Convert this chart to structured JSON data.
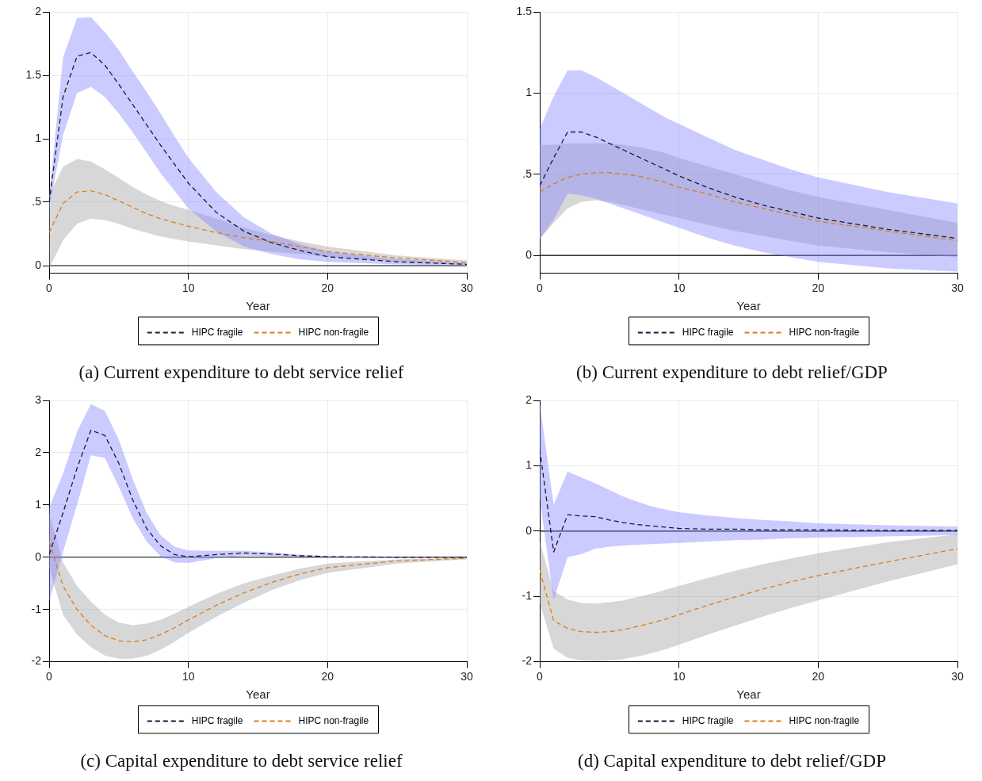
{
  "chart_data": [
    {
      "type": "line",
      "title": "(a) Current expenditure to debt service relief",
      "xlabel": "Year",
      "x": [
        0,
        1,
        2,
        3,
        4,
        5,
        6,
        7,
        8,
        9,
        10,
        12,
        14,
        16,
        18,
        20,
        25,
        30
      ],
      "xlim": [
        0,
        30
      ],
      "xticks": [
        0,
        10,
        20,
        30
      ],
      "ylim": [
        -0.06,
        2
      ],
      "yticks": [
        0,
        {
          "value": 0.5,
          "label": ".5"
        },
        1,
        1.5,
        2
      ],
      "grid": true,
      "legend": "bottom",
      "line_style": "dashed",
      "ref_lines": [
        {
          "axis": "y",
          "value": 0,
          "color": "#000000"
        }
      ],
      "series": [
        {
          "name": "HIPC fragile",
          "color": "#1a1a3a",
          "values": [
            0.5,
            1.33,
            1.65,
            1.68,
            1.58,
            1.43,
            1.27,
            1.11,
            0.95,
            0.8,
            0.65,
            0.42,
            0.27,
            0.18,
            0.12,
            0.07,
            0.03,
            0.01
          ],
          "upper": [
            0.55,
            1.64,
            1.95,
            1.96,
            1.84,
            1.7,
            1.53,
            1.37,
            1.2,
            1.02,
            0.85,
            0.58,
            0.38,
            0.25,
            0.17,
            0.11,
            0.05,
            0.02
          ],
          "lower": [
            0.45,
            1.03,
            1.36,
            1.41,
            1.33,
            1.2,
            1.05,
            0.89,
            0.73,
            0.59,
            0.45,
            0.27,
            0.15,
            0.09,
            0.05,
            0.03,
            0.01,
            0
          ]
        },
        {
          "name": "HIPC non-fragile",
          "color": "#e07b1a",
          "values": [
            0.26,
            0.49,
            0.58,
            0.59,
            0.56,
            0.51,
            0.46,
            0.41,
            0.37,
            0.34,
            0.31,
            0.26,
            0.22,
            0.19,
            0.15,
            0.11,
            0.06,
            0.025
          ],
          "upper": [
            0.55,
            0.78,
            0.84,
            0.82,
            0.76,
            0.69,
            0.62,
            0.56,
            0.51,
            0.47,
            0.44,
            0.37,
            0.3,
            0.24,
            0.19,
            0.15,
            0.08,
            0.04
          ],
          "lower": [
            -0.02,
            0.2,
            0.33,
            0.37,
            0.36,
            0.33,
            0.29,
            0.26,
            0.23,
            0.21,
            0.19,
            0.16,
            0.13,
            0.11,
            0.09,
            0.07,
            0.03,
            0.01
          ]
        }
      ]
    },
    {
      "type": "line",
      "title": "(b) Current expenditure to debt relief/GDP",
      "xlabel": "Year",
      "x": [
        0,
        1,
        2,
        3,
        4,
        5,
        6,
        7,
        8,
        9,
        10,
        12,
        14,
        16,
        18,
        20,
        25,
        30
      ],
      "xlim": [
        0,
        30
      ],
      "xticks": [
        0,
        10,
        20,
        30
      ],
      "ylim": [
        -0.11,
        1.5
      ],
      "yticks": [
        0,
        {
          "value": 0.5,
          "label": ".5"
        },
        1,
        1.5
      ],
      "grid": true,
      "legend": "bottom",
      "line_style": "dashed",
      "ref_lines": [
        {
          "axis": "y",
          "value": 0,
          "color": "#000000"
        }
      ],
      "series": [
        {
          "name": "HIPC fragile",
          "color": "#1a1a3a",
          "values": [
            0.43,
            0.6,
            0.76,
            0.76,
            0.73,
            0.69,
            0.65,
            0.61,
            0.57,
            0.53,
            0.49,
            0.42,
            0.36,
            0.31,
            0.27,
            0.23,
            0.16,
            0.105
          ],
          "upper": [
            0.78,
            0.98,
            1.14,
            1.14,
            1.1,
            1.05,
            1.0,
            0.95,
            0.9,
            0.85,
            0.81,
            0.73,
            0.65,
            0.59,
            0.53,
            0.48,
            0.39,
            0.32
          ],
          "lower": [
            0.1,
            0.22,
            0.38,
            0.37,
            0.35,
            0.32,
            0.29,
            0.26,
            0.23,
            0.2,
            0.17,
            0.11,
            0.06,
            0.02,
            -0.01,
            -0.04,
            -0.08,
            -0.1
          ]
        },
        {
          "name": "HIPC non-fragile",
          "color": "#e07b1a",
          "values": [
            0.39,
            0.44,
            0.48,
            0.5,
            0.51,
            0.51,
            0.5,
            0.49,
            0.47,
            0.45,
            0.42,
            0.38,
            0.33,
            0.29,
            0.25,
            0.21,
            0.15,
            0.09
          ],
          "upper": [
            0.68,
            0.68,
            0.69,
            0.69,
            0.69,
            0.69,
            0.68,
            0.67,
            0.65,
            0.63,
            0.6,
            0.55,
            0.5,
            0.45,
            0.4,
            0.36,
            0.28,
            0.2
          ],
          "lower": [
            0.1,
            0.2,
            0.29,
            0.33,
            0.34,
            0.33,
            0.31,
            0.29,
            0.27,
            0.25,
            0.23,
            0.19,
            0.15,
            0.12,
            0.09,
            0.06,
            0.02,
            -0.01
          ]
        }
      ]
    },
    {
      "type": "line",
      "title": "(c) Capital expenditure to debt service relief",
      "xlabel": "Year",
      "x": [
        0,
        1,
        2,
        3,
        4,
        5,
        6,
        7,
        8,
        9,
        10,
        12,
        14,
        16,
        18,
        20,
        25,
        30
      ],
      "xlim": [
        0,
        30
      ],
      "xticks": [
        0,
        10,
        20,
        30
      ],
      "ylim": [
        -2,
        3
      ],
      "yticks": [
        -2,
        -1,
        0,
        1,
        2,
        3
      ],
      "grid": true,
      "legend": "bottom",
      "line_style": "dashed",
      "ref_lines": [
        {
          "axis": "y",
          "value": 0,
          "color": "#000000"
        }
      ],
      "series": [
        {
          "name": "HIPC fragile",
          "color": "#1a1a3a",
          "values": [
            0.05,
            0.85,
            1.7,
            2.43,
            2.33,
            1.8,
            1.1,
            0.55,
            0.22,
            0.05,
            0.01,
            0.05,
            0.08,
            0.06,
            0.03,
            0.01,
            0,
            0
          ],
          "upper": [
            0.95,
            1.6,
            2.4,
            2.93,
            2.8,
            2.25,
            1.5,
            0.85,
            0.42,
            0.2,
            0.13,
            0.12,
            0.12,
            0.09,
            0.05,
            0.02,
            0.01,
            0
          ],
          "lower": [
            -0.85,
            0.1,
            1.0,
            1.95,
            1.9,
            1.35,
            0.75,
            0.3,
            0.02,
            -0.1,
            -0.11,
            -0.02,
            0.03,
            0.02,
            0.01,
            0,
            -0.01,
            0
          ]
        },
        {
          "name": "HIPC non-fragile",
          "color": "#e07b1a",
          "values": [
            0.3,
            -0.55,
            -1.0,
            -1.3,
            -1.5,
            -1.6,
            -1.62,
            -1.58,
            -1.48,
            -1.35,
            -1.2,
            -0.92,
            -0.68,
            -0.48,
            -0.32,
            -0.2,
            -0.07,
            -0.02
          ],
          "upper": [
            0.85,
            -0.1,
            -0.55,
            -0.85,
            -1.1,
            -1.25,
            -1.3,
            -1.27,
            -1.2,
            -1.08,
            -0.95,
            -0.7,
            -0.5,
            -0.35,
            -0.22,
            -0.12,
            -0.04,
            -0.01
          ],
          "lower": [
            -0.2,
            -1.1,
            -1.48,
            -1.72,
            -1.88,
            -1.94,
            -1.94,
            -1.89,
            -1.77,
            -1.62,
            -1.45,
            -1.14,
            -0.87,
            -0.63,
            -0.44,
            -0.3,
            -0.12,
            -0.04
          ]
        }
      ]
    },
    {
      "type": "line",
      "title": "(d) Capital expenditure to debt relief/GDP",
      "xlabel": "Year",
      "x": [
        0,
        1,
        2,
        3,
        4,
        5,
        6,
        7,
        8,
        9,
        10,
        12,
        14,
        16,
        18,
        20,
        25,
        30
      ],
      "xlim": [
        0,
        30
      ],
      "xticks": [
        0,
        10,
        20,
        30
      ],
      "ylim": [
        -2,
        2
      ],
      "yticks": [
        -2,
        -1,
        0,
        1,
        2
      ],
      "grid": true,
      "legend": "bottom",
      "line_style": "dashed",
      "ref_lines": [
        {
          "axis": "y",
          "value": 0,
          "color": "#000000"
        }
      ],
      "series": [
        {
          "name": "HIPC fragile",
          "color": "#1a1a3a",
          "values": [
            1.25,
            -0.32,
            0.25,
            0.23,
            0.22,
            0.17,
            0.13,
            0.1,
            0.08,
            0.06,
            0.04,
            0.03,
            0.03,
            0.02,
            0.02,
            0.02,
            0.01,
            0.01
          ],
          "upper": [
            1.95,
            0.4,
            0.91,
            0.82,
            0.73,
            0.63,
            0.53,
            0.45,
            0.38,
            0.33,
            0.29,
            0.24,
            0.2,
            0.17,
            0.15,
            0.12,
            0.09,
            0.07
          ],
          "lower": [
            0.5,
            -1.05,
            -0.4,
            -0.35,
            -0.27,
            -0.24,
            -0.22,
            -0.21,
            -0.2,
            -0.19,
            -0.18,
            -0.16,
            -0.14,
            -0.13,
            -0.11,
            -0.1,
            -0.08,
            -0.06
          ]
        },
        {
          "name": "HIPC non-fragile",
          "color": "#e07b1a",
          "values": [
            -0.6,
            -1.37,
            -1.49,
            -1.54,
            -1.55,
            -1.54,
            -1.51,
            -1.46,
            -1.41,
            -1.35,
            -1.28,
            -1.14,
            -1.01,
            -0.89,
            -0.78,
            -0.68,
            -0.47,
            -0.27
          ],
          "upper": [
            -0.15,
            -0.92,
            -1.05,
            -1.1,
            -1.11,
            -1.09,
            -1.06,
            -1.01,
            -0.96,
            -0.9,
            -0.84,
            -0.72,
            -0.61,
            -0.51,
            -0.42,
            -0.34,
            -0.17,
            -0.05
          ],
          "lower": [
            -1.1,
            -1.8,
            -1.94,
            -1.98,
            -1.99,
            -1.98,
            -1.96,
            -1.92,
            -1.87,
            -1.81,
            -1.74,
            -1.59,
            -1.45,
            -1.31,
            -1.18,
            -1.06,
            -0.77,
            -0.51
          ]
        }
      ]
    }
  ]
}
